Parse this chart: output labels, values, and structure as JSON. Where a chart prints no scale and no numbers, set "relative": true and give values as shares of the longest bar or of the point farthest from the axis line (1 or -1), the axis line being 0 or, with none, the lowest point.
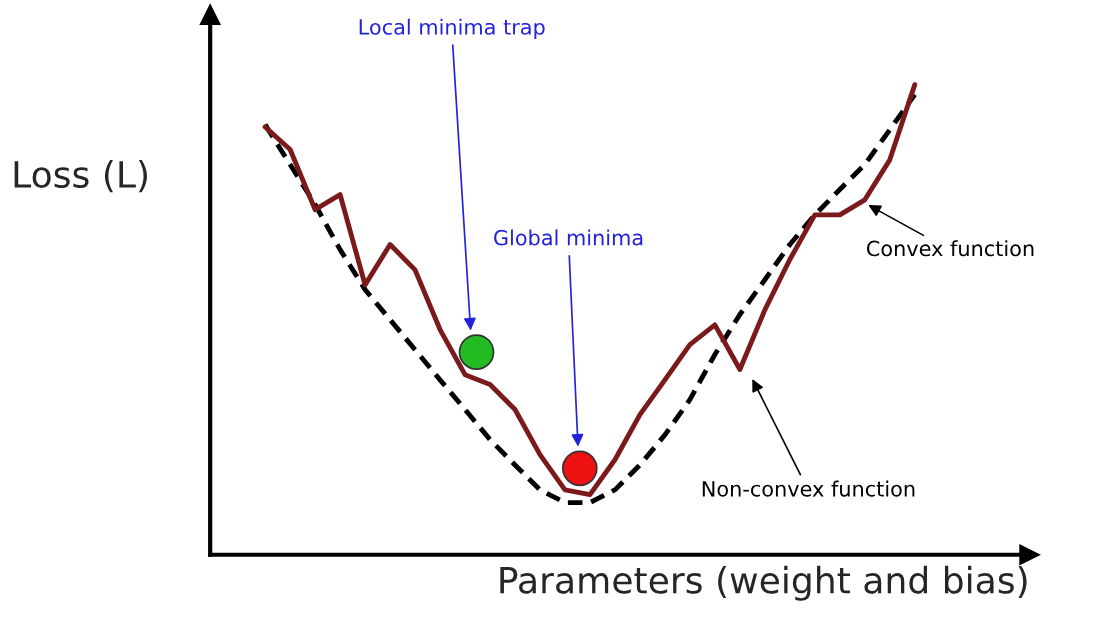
{
  "chart_data": {
    "type": "line",
    "relative": true,
    "xlabel": "Parameters (weight and bias)",
    "ylabel": "Loss (L)",
    "marker": "none",
    "categories": [
      null,
      null,
      null,
      null,
      null,
      null,
      null,
      null,
      null,
      null,
      null,
      null,
      null,
      null,
      null,
      null,
      null,
      null,
      null,
      null,
      null,
      null,
      null,
      null,
      null,
      null,
      null
    ],
    "series": [
      {
        "line_style": "dashed",
        "color": "#000000",
        "values": [
          0.915,
          0.83,
          0.745,
          0.649,
          0.564,
          0.5,
          0.436,
          0.372,
          0.309,
          0.245,
          0.191,
          0.138,
          0.111,
          0.111,
          0.138,
          0.191,
          0.255,
          0.33,
          0.426,
          0.511,
          0.585,
          0.66,
          0.723,
          0.777,
          0.83,
          0.904,
          0.979
        ]
      },
      {
        "line_style": "solid",
        "color": "#7b1a1a",
        "values": [
          0.91,
          0.862,
          0.734,
          0.766,
          0.574,
          0.66,
          0.606,
          0.479,
          0.383,
          0.362,
          0.309,
          0.213,
          0.138,
          0.128,
          0.202,
          0.298,
          0.372,
          0.447,
          0.489,
          0.394,
          0.521,
          0.628,
          0.723,
          0.723,
          0.755,
          0.84,
          1.0
        ]
      }
    ],
    "annotations": [
      "Local minima trap",
      "Global minima",
      "Convex function",
      "Non-convex function"
    ]
  }
}
